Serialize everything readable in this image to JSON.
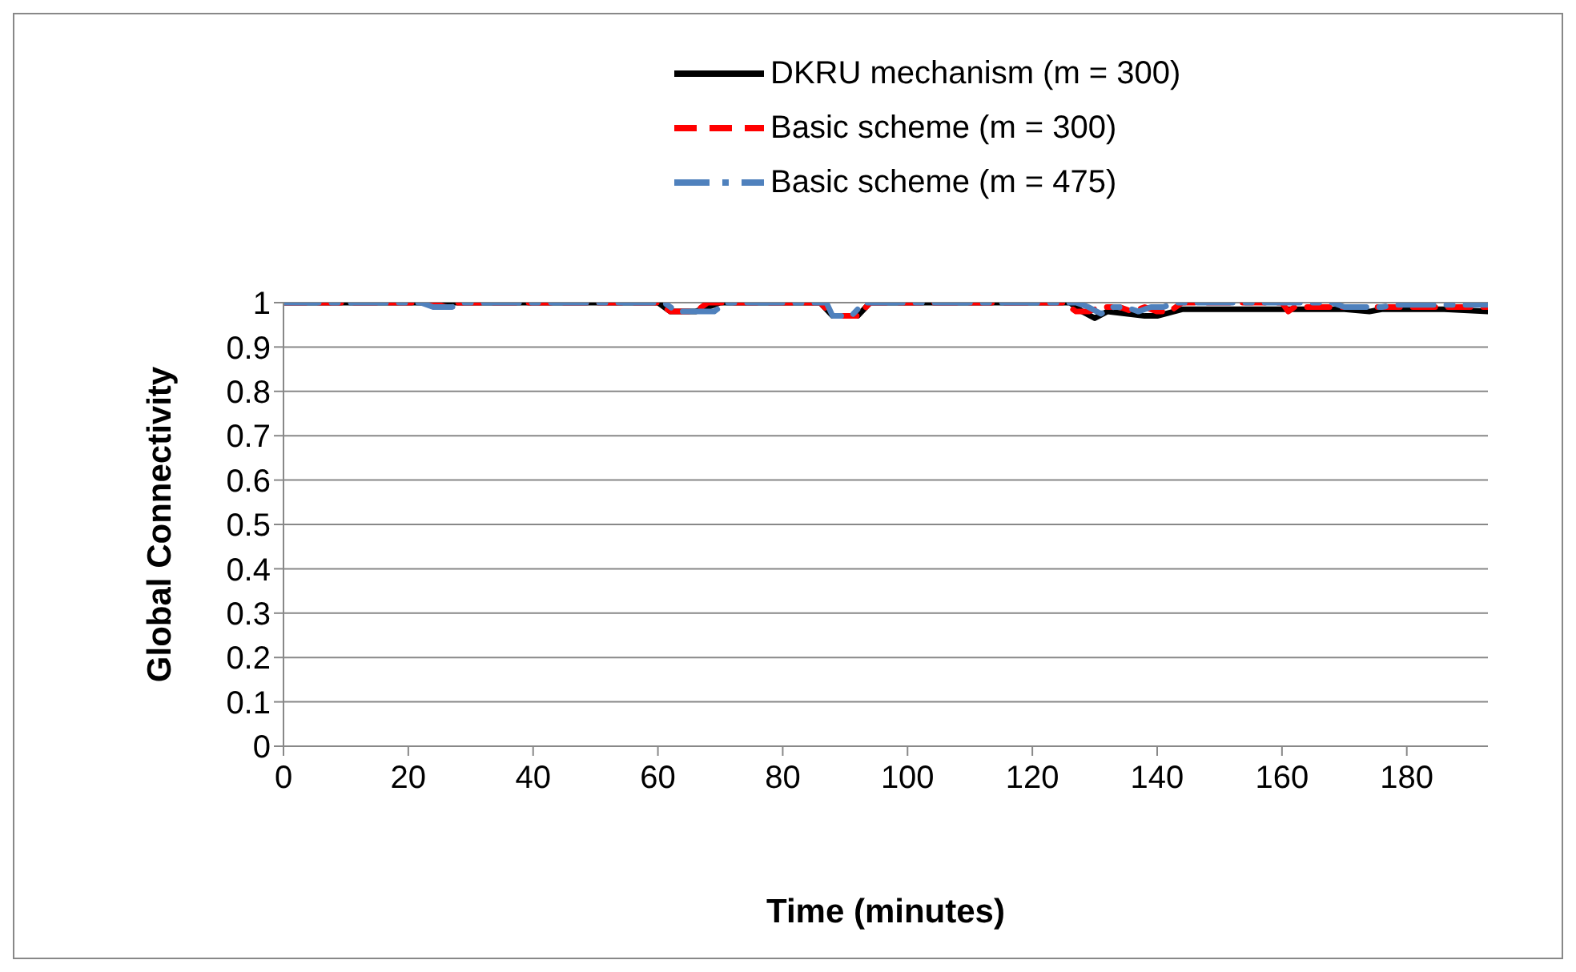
{
  "chart_data": {
    "type": "line",
    "xlabel": "Time (minutes)",
    "ylabel": "Global Connectivity",
    "xlim": [
      0,
      193
    ],
    "xticks": [
      0,
      20,
      40,
      60,
      80,
      100,
      120,
      140,
      160,
      180
    ],
    "ylim": [
      0,
      1
    ],
    "yticks": [
      0,
      0.1,
      0.2,
      0.3,
      0.4,
      0.5,
      0.6,
      0.7,
      0.8,
      0.9,
      1
    ],
    "grid": "y",
    "legend": "top",
    "marker": "none",
    "series": [
      {
        "name": "DKRU mechanism (m = 300)",
        "color": "#000000",
        "line_style": "solid",
        "x": [
          0,
          60,
          62,
          66,
          70,
          86,
          88,
          92,
          94,
          126,
          128,
          130,
          132,
          138,
          140,
          144,
          146,
          170,
          174,
          176,
          186,
          193
        ],
        "values": [
          1,
          1,
          0.98,
          0.98,
          1,
          1,
          0.97,
          0.97,
          1,
          1,
          0.98,
          0.965,
          0.98,
          0.97,
          0.97,
          0.985,
          0.985,
          0.985,
          0.98,
          0.985,
          0.985,
          0.98
        ]
      },
      {
        "name": "Basic scheme (m = 300)",
        "color": "#ff0000",
        "line_style": "dashed",
        "x": [
          0,
          24,
          26,
          28,
          60,
          62,
          66,
          68,
          86,
          88,
          92,
          94,
          125,
          127,
          129,
          131,
          134,
          136,
          138,
          140,
          142,
          144,
          160,
          161,
          162,
          184,
          193
        ],
        "values": [
          1,
          1,
          0.99,
          1,
          1,
          0.98,
          0.98,
          1,
          1,
          0.97,
          0.97,
          1,
          1,
          0.98,
          0.98,
          0.99,
          0.99,
          0.98,
          0.99,
          0.98,
          0.98,
          1,
          1,
          0.98,
          0.99,
          0.99,
          0.99
        ]
      },
      {
        "name": "Basic scheme (m = 475)",
        "color": "#4f81bd",
        "line_style": "dashdot",
        "x": [
          0,
          22,
          24,
          27,
          29,
          61,
          63,
          69,
          71,
          87,
          88,
          91,
          93,
          127,
          129,
          131,
          133,
          135,
          137,
          139,
          141,
          143,
          168,
          170,
          176,
          178,
          193
        ],
        "values": [
          1,
          1,
          0.99,
          0.99,
          1,
          1,
          0.98,
          0.98,
          1,
          1,
          0.97,
          0.97,
          1,
          1,
          0.99,
          0.975,
          0.99,
          0.99,
          0.98,
          0.99,
          0.99,
          1,
          1,
          0.99,
          0.99,
          0.995,
          0.995
        ]
      }
    ]
  }
}
